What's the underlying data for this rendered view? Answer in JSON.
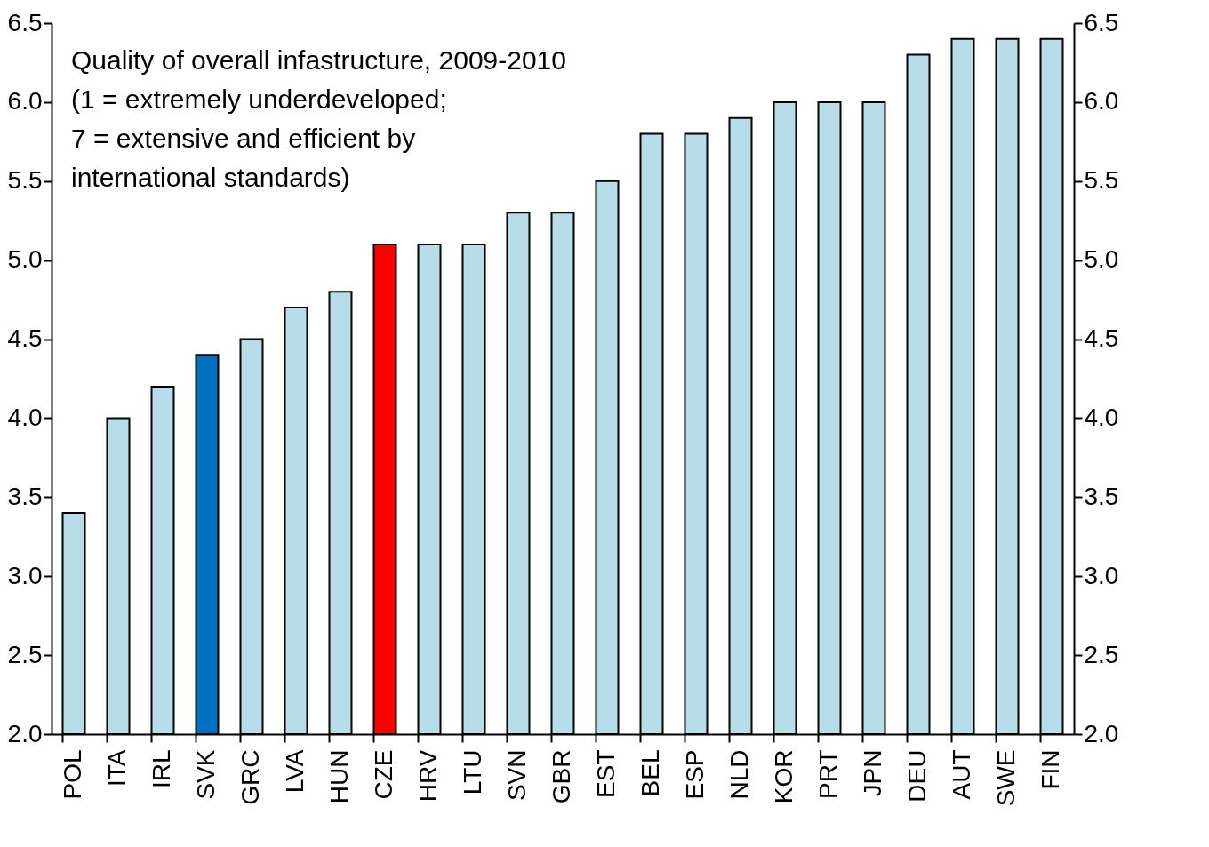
{
  "chart_data": {
    "type": "bar",
    "categories": [
      "POL",
      "ITA",
      "IRL",
      "SVK",
      "GRC",
      "LVA",
      "HUN",
      "CZE",
      "HRV",
      "LTU",
      "SVN",
      "GBR",
      "EST",
      "BEL",
      "ESP",
      "NLD",
      "KOR",
      "PRT",
      "JPN",
      "DEU",
      "AUT",
      "SWE",
      "FIN"
    ],
    "values": [
      3.4,
      4.0,
      4.2,
      4.4,
      4.5,
      4.7,
      4.8,
      5.1,
      5.1,
      5.1,
      5.3,
      5.3,
      5.5,
      5.8,
      5.8,
      5.9,
      6.0,
      6.0,
      6.0,
      6.3,
      6.4,
      6.4,
      6.4
    ],
    "colors": [
      "#b7dde8",
      "#b7dde8",
      "#b7dde8",
      "#0070c0",
      "#b7dde8",
      "#b7dde8",
      "#b7dde8",
      "#ff0000",
      "#b7dde8",
      "#b7dde8",
      "#b7dde8",
      "#b7dde8",
      "#b7dde8",
      "#b7dde8",
      "#b7dde8",
      "#b7dde8",
      "#b7dde8",
      "#b7dde8",
      "#b7dde8",
      "#b7dde8",
      "#b7dde8",
      "#b7dde8",
      "#b7dde8"
    ],
    "ylim": [
      2.0,
      6.5
    ],
    "yticks": [
      {
        "value": 2,
        "label": "2.0"
      },
      2.5,
      {
        "value": 3,
        "label": "3.0"
      },
      3.5,
      {
        "value": 4,
        "label": "4.0"
      },
      4.5,
      {
        "value": 5,
        "label": "5.0"
      },
      5.5,
      {
        "value": 6,
        "label": "6.0"
      },
      6.5
    ],
    "y2lim": [
      2.0,
      6.5
    ],
    "y2ticks": [
      {
        "value": 2,
        "label": "2.0"
      },
      2.5,
      {
        "value": 3,
        "label": "3.0"
      },
      3.5,
      {
        "value": 4,
        "label": "4.0"
      },
      4.5,
      {
        "value": 5,
        "label": "5.0"
      },
      5.5,
      {
        "value": 6,
        "label": "6.0"
      },
      6.5
    ],
    "annotations": [
      "Quality of overall infastructure, 2009-2010\n(1 = extremely underdeveloped;\n7 = extensive and efficient by\ninternational standards)"
    ],
    "grid": false
  }
}
